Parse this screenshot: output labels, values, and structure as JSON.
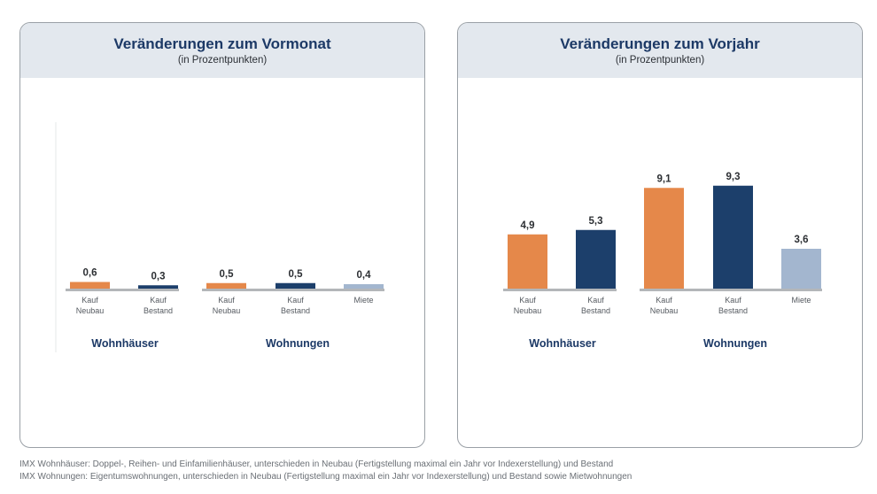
{
  "colors": {
    "kauf_neubau": "#e5884a",
    "kauf_bestand": "#1c3f6b",
    "miete": "#a3b6cf",
    "baseline": "#b3b6b9",
    "group_text": "#1c3966"
  },
  "chart_data": [
    {
      "type": "bar",
      "title": "Veränderungen zum Vormonat",
      "subtitle": "(in Prozentpunkten)",
      "ylim": [
        0,
        10
      ],
      "groups": [
        {
          "name": "Wohnhäuser",
          "bars": [
            {
              "label_line1": "Kauf",
              "label_line2": "Neubau",
              "value": 0.6,
              "value_label": "0,6",
              "color_key": "kauf_neubau"
            },
            {
              "label_line1": "Kauf",
              "label_line2": "Bestand",
              "value": 0.3,
              "value_label": "0,3",
              "color_key": "kauf_bestand"
            }
          ]
        },
        {
          "name": "Wohnungen",
          "bars": [
            {
              "label_line1": "Kauf",
              "label_line2": "Neubau",
              "value": 0.5,
              "value_label": "0,5",
              "color_key": "kauf_neubau"
            },
            {
              "label_line1": "Kauf",
              "label_line2": "Bestand",
              "value": 0.5,
              "value_label": "0,5",
              "color_key": "kauf_bestand"
            },
            {
              "label_line1": "Miete",
              "label_line2": "",
              "value": 0.4,
              "value_label": "0,4",
              "color_key": "miete"
            }
          ]
        }
      ]
    },
    {
      "type": "bar",
      "title": "Veränderungen zum Vorjahr",
      "subtitle": "(in Prozentpunkten)",
      "ylim": [
        0,
        10
      ],
      "groups": [
        {
          "name": "Wohnhäuser",
          "bars": [
            {
              "label_line1": "Kauf",
              "label_line2": "Neubau",
              "value": 4.9,
              "value_label": "4,9",
              "color_key": "kauf_neubau"
            },
            {
              "label_line1": "Kauf",
              "label_line2": "Bestand",
              "value": 5.3,
              "value_label": "5,3",
              "color_key": "kauf_bestand"
            }
          ]
        },
        {
          "name": "Wohnungen",
          "bars": [
            {
              "label_line1": "Kauf",
              "label_line2": "Neubau",
              "value": 9.1,
              "value_label": "9,1",
              "color_key": "kauf_neubau"
            },
            {
              "label_line1": "Kauf",
              "label_line2": "Bestand",
              "value": 9.3,
              "value_label": "9,3",
              "color_key": "kauf_bestand"
            },
            {
              "label_line1": "Miete",
              "label_line2": "",
              "value": 3.6,
              "value_label": "3,6",
              "color_key": "miete"
            }
          ]
        }
      ]
    }
  ],
  "footnotes": [
    "IMX Wohnhäuser: Doppel-, Reihen- und Einfamilienhäuser, unterschieden in Neubau (Fertigstellung maximal ein Jahr vor Indexerstellung) und Bestand",
    "IMX Wohnungen: Eigentumswohnungen, unterschieden in Neubau (Fertigstellung maximal ein Jahr vor Indexerstellung) und Bestand sowie Mietwohnungen"
  ]
}
